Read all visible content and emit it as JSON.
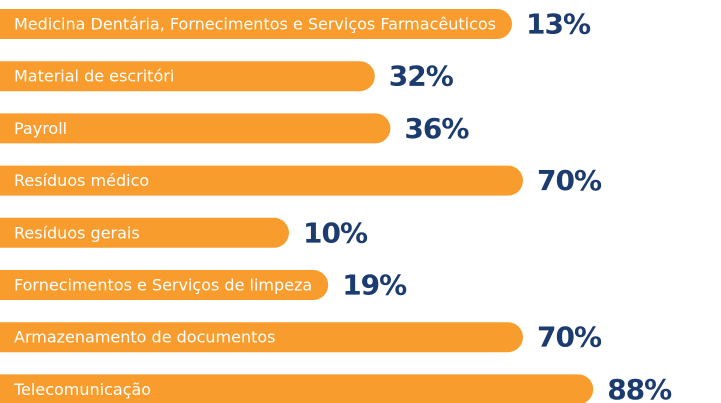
{
  "chart_data": {
    "type": "bar",
    "categories": [
      "Medicina Dentária, Fornecimentos e Serviços Farmacêuticos",
      "Material de escritóri",
      "Payroll",
      "Resíduos médico",
      "Resíduos gerais",
      "Fornecimentos e Serviços de limpeza",
      "Armazenamento de documentos",
      "Telecomunicação"
    ],
    "values": [
      13,
      32,
      36,
      70,
      10,
      19,
      70,
      88
    ],
    "value_labels": [
      "13%",
      "32%",
      "36%",
      "70%",
      "10%",
      "19%",
      "70%",
      "88%"
    ],
    "color": "#f89c2e",
    "label_color": "#1c3b6f"
  }
}
